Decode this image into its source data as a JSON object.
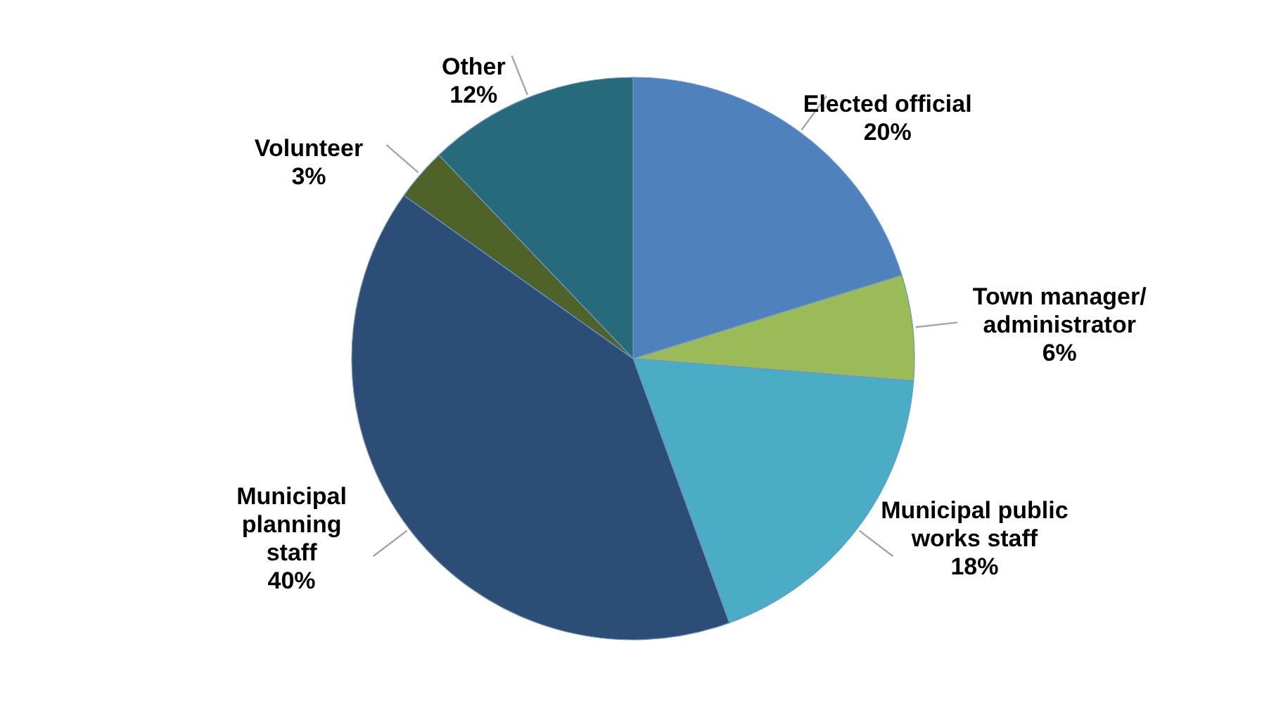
{
  "chart_data": {
    "type": "pie",
    "categories": [
      "Elected official",
      "Town manager/\nadministrator",
      "Municipal public\nworks staff",
      "Municipal\nplanning\nstaff",
      "Volunteer",
      "Other"
    ],
    "values": [
      20,
      6,
      18,
      40,
      3,
      12
    ],
    "value_labels": [
      "20%",
      "6%",
      "18%",
      "40%",
      "3%",
      "12%"
    ],
    "colors": [
      "#4f81bd",
      "#9bbb59",
      "#4bacc6",
      "#2c4d75",
      "#4f6228",
      "#276a7c"
    ]
  }
}
